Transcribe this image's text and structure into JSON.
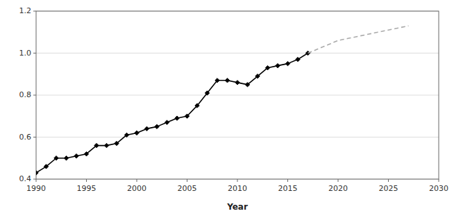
{
  "chart_data": {
    "type": "line",
    "xlabel": "Year",
    "series": [
      {
        "color": "#000000",
        "marker": "diamond",
        "line_style": "solid",
        "x": [
          1990,
          1991,
          1992,
          1993,
          1994,
          1995,
          1996,
          1997,
          1998,
          1999,
          2000,
          2001,
          2002,
          2003,
          2004,
          2005,
          2006,
          2007,
          2008,
          2009,
          2010,
          2011,
          2012,
          2013,
          2014,
          2015,
          2016,
          2017
        ],
        "values": [
          0.43,
          0.46,
          0.5,
          0.5,
          0.51,
          0.52,
          0.56,
          0.56,
          0.57,
          0.61,
          0.62,
          0.64,
          0.65,
          0.67,
          0.69,
          0.7,
          0.75,
          0.81,
          0.87,
          0.87,
          0.86,
          0.85,
          0.89,
          0.93,
          0.94,
          0.95,
          0.97,
          1.0
        ]
      },
      {
        "color": "#aaaaaa",
        "line_style": "dashed",
        "x": [
          2017,
          2018,
          2019,
          2020,
          2021,
          2022,
          2023,
          2024,
          2025,
          2026,
          2027
        ],
        "values": [
          1.0,
          1.02,
          1.04,
          1.06,
          1.07,
          1.08,
          1.09,
          1.1,
          1.11,
          1.12,
          1.13
        ]
      }
    ],
    "xlim": [
      1990,
      2030
    ],
    "ylim": [
      0.4,
      1.2
    ],
    "xticks": [
      1990,
      1995,
      2000,
      2005,
      2010,
      2015,
      2020,
      2025,
      2030
    ],
    "yticks": [
      0.4,
      0.6,
      0.8,
      {
        "value": 1.0,
        "label": "1.0"
      },
      1.2
    ],
    "grid": true
  }
}
